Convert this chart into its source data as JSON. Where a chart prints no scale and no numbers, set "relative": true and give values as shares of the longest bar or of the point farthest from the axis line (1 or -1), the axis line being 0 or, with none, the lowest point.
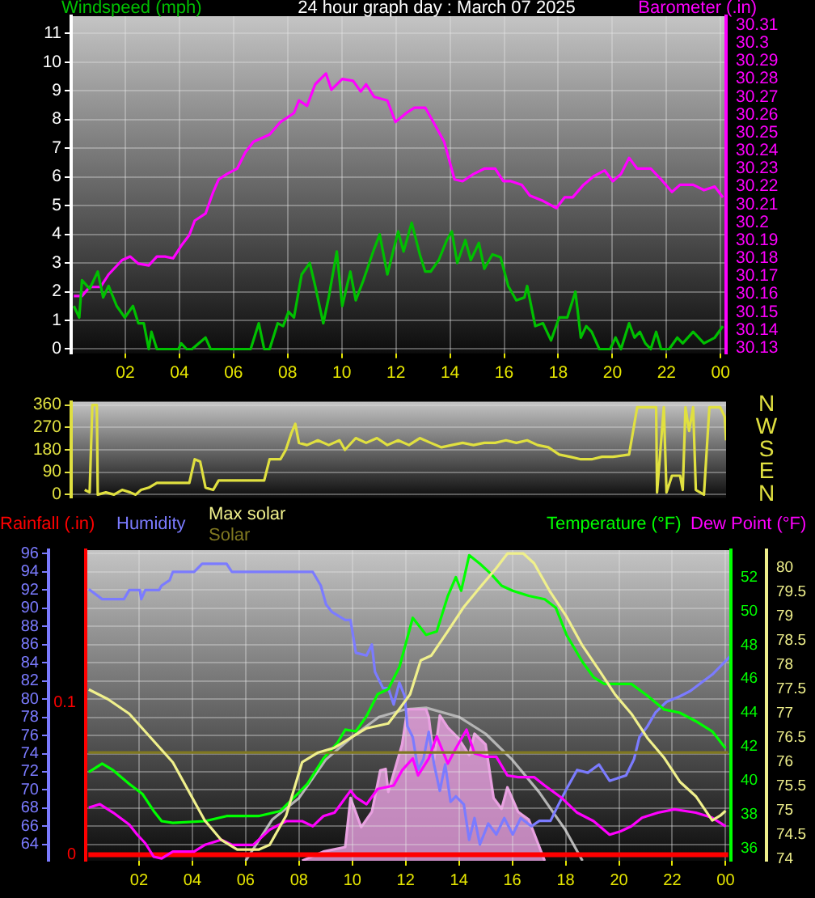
{
  "chart_data": [
    {
      "type": "line",
      "title": "24 hour graph day : March 07 2025",
      "ylabel": "Windspeed (mph)",
      "y2label": "Barometer (.in)",
      "xlim": [
        "2025-03-07T00:00",
        "2025-03-08T00:12"
      ],
      "xticks": [
        {
          "value": "2025-03-07T02:00",
          "label": "02"
        },
        {
          "value": "2025-03-07T04:00",
          "label": "04"
        },
        {
          "value": "2025-03-07T06:00",
          "label": "06"
        },
        {
          "value": "2025-03-07T08:00",
          "label": "08"
        },
        {
          "value": "2025-03-07T10:00",
          "label": "10"
        },
        {
          "value": "2025-03-07T12:00",
          "label": "12"
        },
        {
          "value": "2025-03-07T14:00",
          "label": "14"
        },
        {
          "value": "2025-03-07T16:00",
          "label": "16"
        },
        {
          "value": "2025-03-07T18:00",
          "label": "18"
        },
        {
          "value": "2025-03-07T20:00",
          "label": "20"
        },
        {
          "value": "2025-03-07T22:00",
          "label": "22"
        },
        {
          "value": "2025-03-08T00:00",
          "label": "00"
        }
      ],
      "ylim": [
        -0.15,
        11.6
      ],
      "yticks": [
        0,
        1,
        2,
        3,
        4,
        5,
        6,
        7,
        8,
        9,
        10,
        11
      ],
      "y2lim": [
        30.127,
        30.315
      ],
      "y2ticks": [
        30.13,
        30.14,
        30.15,
        30.16,
        30.17,
        30.18,
        30.19,
        30.2,
        30.21,
        30.22,
        30.23,
        30.24,
        30.25,
        30.26,
        30.27,
        30.28,
        30.29,
        30.3,
        30.31
      ],
      "grid": true,
      "series": [
        {
          "color": "#00c000",
          "x": [
            "2025-03-07T00:06",
            "2025-03-07T00:18",
            "2025-03-07T00:24",
            "2025-03-07T00:41",
            "2025-03-07T00:59",
            "2025-03-07T01:11",
            "2025-03-07T01:23",
            "2025-03-07T01:41",
            "2025-03-07T01:59",
            "2025-03-07T02:17",
            "2025-03-07T02:29",
            "2025-03-07T02:41",
            "2025-03-07T02:52",
            "2025-03-07T02:58",
            "2025-03-07T03:10",
            "2025-03-07T03:58",
            "2025-03-07T04:04",
            "2025-03-07T04:16",
            "2025-03-07T04:28",
            "2025-03-07T04:58",
            "2025-03-07T05:09",
            "2025-03-07T05:21",
            "2025-03-07T05:33",
            "2025-03-07T06:32",
            "2025-03-07T06:38",
            "2025-03-07T06:56",
            "2025-03-07T07:08",
            "2025-03-07T07:20",
            "2025-03-07T07:38",
            "2025-03-07T07:50",
            "2025-03-07T08:02",
            "2025-03-07T08:14",
            "2025-03-07T08:31",
            "2025-03-07T08:49",
            "2025-03-07T09:01",
            "2025-03-07T09:19",
            "2025-03-07T09:31",
            "2025-03-07T09:49",
            "2025-03-07T10:01",
            "2025-03-07T10:19",
            "2025-03-07T10:31",
            "2025-03-07T10:48",
            "2025-03-07T11:12",
            "2025-03-07T11:24",
            "2025-03-07T11:41",
            "2025-03-07T12:05",
            "2025-03-07T12:17",
            "2025-03-07T12:35",
            "2025-03-07T12:53",
            "2025-03-07T13:05",
            "2025-03-07T13:17",
            "2025-03-07T13:35",
            "2025-03-07T13:53",
            "2025-03-07T14:04",
            "2025-03-07T14:16",
            "2025-03-07T14:34",
            "2025-03-07T14:46",
            "2025-03-07T15:04",
            "2025-03-07T15:16",
            "2025-03-07T15:34",
            "2025-03-07T15:52",
            "2025-03-07T16:09",
            "2025-03-07T16:27",
            "2025-03-07T16:45",
            "2025-03-07T16:51",
            "2025-03-07T17:09",
            "2025-03-07T17:26",
            "2025-03-07T17:44",
            "2025-03-07T18:02",
            "2025-03-07T18:20",
            "2025-03-07T18:38",
            "2025-03-07T18:50",
            "2025-03-07T19:02",
            "2025-03-07T19:14",
            "2025-03-07T19:31",
            "2025-03-07T19:55",
            "2025-03-07T20:07",
            "2025-03-07T20:19",
            "2025-03-07T20:37",
            "2025-03-07T20:49",
            "2025-03-07T21:01",
            "2025-03-07T21:13",
            "2025-03-07T21:25",
            "2025-03-07T21:37",
            "2025-03-07T21:48",
            "2025-03-07T22:06",
            "2025-03-07T22:24",
            "2025-03-07T22:36",
            "2025-03-07T22:59",
            "2025-03-07T23:23",
            "2025-03-07T23:47",
            "2025-03-08T00:05"
          ],
          "values": [
            1.5,
            1.1,
            2.4,
            2.1,
            2.7,
            1.8,
            2.2,
            1.5,
            1.1,
            1.5,
            0.9,
            0.9,
            0,
            0.6,
            0,
            0,
            0.2,
            0,
            0,
            0.4,
            0,
            0,
            0,
            0,
            0,
            0.9,
            0,
            0,
            0.9,
            0.8,
            1.3,
            1.1,
            2.6,
            3.0,
            2.2,
            0.9,
            1.8,
            3.4,
            1.5,
            2.7,
            1.7,
            2.4,
            3.5,
            4.0,
            2.6,
            4.1,
            3.4,
            4.4,
            3.3,
            2.7,
            2.7,
            3.1,
            3.8,
            4.1,
            3.0,
            3.8,
            3.1,
            3.7,
            2.8,
            3.3,
            3.2,
            2.2,
            1.7,
            1.8,
            2.2,
            0.8,
            0.9,
            0.3,
            1.1,
            1.1,
            2.0,
            0.4,
            0.8,
            0.6,
            0,
            0,
            0.4,
            0,
            0.9,
            0.4,
            0.6,
            0.2,
            0,
            0.6,
            0,
            0,
            0.4,
            0.2,
            0.6,
            0.2,
            0.4,
            0.8
          ]
        },
        {
          "color": "#ff00ff",
          "axis": "y2",
          "x": [
            "2025-03-07T00:06",
            "2025-03-07T00:24",
            "2025-03-07T00:41",
            "2025-03-07T01:05",
            "2025-03-07T01:23",
            "2025-03-07T01:53",
            "2025-03-07T02:11",
            "2025-03-07T02:29",
            "2025-03-07T02:52",
            "2025-03-07T03:10",
            "2025-03-07T03:28",
            "2025-03-07T03:46",
            "2025-03-07T04:04",
            "2025-03-07T04:22",
            "2025-03-07T04:34",
            "2025-03-07T04:58",
            "2025-03-07T05:15",
            "2025-03-07T05:27",
            "2025-03-07T05:45",
            "2025-03-07T06:08",
            "2025-03-07T06:26",
            "2025-03-07T06:44",
            "2025-03-07T07:20",
            "2025-03-07T07:44",
            "2025-03-07T08:14",
            "2025-03-07T08:25",
            "2025-03-07T08:43",
            "2025-03-07T09:01",
            "2025-03-07T09:25",
            "2025-03-07T09:37",
            "2025-03-07T10:01",
            "2025-03-07T10:25",
            "2025-03-07T10:42",
            "2025-03-07T10:54",
            "2025-03-07T11:12",
            "2025-03-07T11:41",
            "2025-03-07T11:59",
            "2025-03-07T12:23",
            "2025-03-07T12:41",
            "2025-03-07T13:05",
            "2025-03-07T13:23",
            "2025-03-07T13:47",
            "2025-03-07T14:10",
            "2025-03-07T14:28",
            "2025-03-07T14:52",
            "2025-03-07T15:16",
            "2025-03-07T15:40",
            "2025-03-07T15:58",
            "2025-03-07T16:15",
            "2025-03-07T16:39",
            "2025-03-07T16:57",
            "2025-03-07T17:26",
            "2025-03-07T17:56",
            "2025-03-07T18:14",
            "2025-03-07T18:32",
            "2025-03-07T18:56",
            "2025-03-07T19:20",
            "2025-03-07T19:43",
            "2025-03-07T20:01",
            "2025-03-07T20:19",
            "2025-03-07T20:37",
            "2025-03-07T20:55",
            "2025-03-07T21:25",
            "2025-03-07T21:48",
            "2025-03-07T22:12",
            "2025-03-07T22:30",
            "2025-03-07T22:59",
            "2025-03-07T23:23",
            "2025-03-07T23:47",
            "2025-03-08T00:05"
          ],
          "values": [
            30.159,
            30.159,
            30.164,
            30.164,
            30.171,
            30.179,
            30.181,
            30.177,
            30.176,
            30.181,
            30.181,
            30.18,
            30.187,
            30.193,
            30.201,
            30.205,
            30.217,
            30.224,
            30.227,
            30.23,
            30.239,
            30.245,
            30.249,
            30.256,
            30.261,
            30.268,
            30.265,
            30.277,
            30.283,
            30.274,
            30.28,
            30.279,
            30.273,
            30.277,
            30.27,
            30.268,
            30.256,
            30.261,
            30.264,
            30.264,
            30.256,
            30.245,
            30.224,
            30.223,
            30.227,
            30.23,
            30.23,
            30.223,
            30.223,
            30.221,
            30.215,
            30.212,
            30.208,
            30.214,
            30.214,
            30.221,
            30.226,
            30.229,
            30.223,
            30.227,
            30.236,
            30.23,
            30.23,
            30.224,
            30.217,
            30.221,
            30.221,
            30.218,
            30.22,
            30.214
          ]
        }
      ]
    },
    {
      "type": "line",
      "xlim": [
        "2025-03-07T00:00",
        "2025-03-08T00:12"
      ],
      "ylim": [
        -13,
        373
      ],
      "yticks": [
        0,
        90,
        180,
        270,
        360
      ],
      "grid": "y",
      "tick_labels": "y",
      "annotations": [
        "N",
        "W",
        "S",
        "E",
        "N"
      ],
      "series": [
        {
          "color": "#e0e040",
          "x": [
            "2025-03-07T00:30",
            "2025-03-07T00:41",
            "2025-03-07T00:47",
            "2025-03-07T00:57",
            "2025-03-07T00:59",
            "2025-03-07T01:17",
            "2025-03-07T01:35",
            "2025-03-07T01:53",
            "2025-03-07T02:11",
            "2025-03-07T02:23",
            "2025-03-07T02:35",
            "2025-03-07T02:52",
            "2025-03-07T03:10",
            "2025-03-07T03:34",
            "2025-03-07T04:22",
            "2025-03-07T04:28",
            "2025-03-07T04:34",
            "2025-03-07T04:46",
            "2025-03-07T04:58",
            "2025-03-07T05:15",
            "2025-03-07T05:27",
            "2025-03-07T07:08",
            "2025-03-07T07:20",
            "2025-03-07T07:44",
            "2025-03-07T07:56",
            "2025-03-07T08:08",
            "2025-03-07T08:17",
            "2025-03-07T08:25",
            "2025-03-07T08:43",
            "2025-03-07T09:07",
            "2025-03-07T09:31",
            "2025-03-07T09:55",
            "2025-03-07T10:07",
            "2025-03-07T10:31",
            "2025-03-07T10:54",
            "2025-03-07T11:18",
            "2025-03-07T11:41",
            "2025-03-07T12:05",
            "2025-03-07T12:29",
            "2025-03-07T12:53",
            "2025-03-07T13:17",
            "2025-03-07T13:41",
            "2025-03-07T14:04",
            "2025-03-07T14:28",
            "2025-03-07T14:52",
            "2025-03-07T15:16",
            "2025-03-07T15:40",
            "2025-03-07T16:04",
            "2025-03-07T16:27",
            "2025-03-07T16:51",
            "2025-03-07T17:14",
            "2025-03-07T17:38",
            "2025-03-07T18:02",
            "2025-03-07T18:26",
            "2025-03-07T18:50",
            "2025-03-07T19:14",
            "2025-03-07T19:37",
            "2025-03-07T20:01",
            "2025-03-07T20:37",
            "2025-03-07T20:55",
            "2025-03-07T21:37",
            "2025-03-07T21:39",
            "2025-03-07T21:54",
            "2025-03-07T22:00",
            "2025-03-07T22:12",
            "2025-03-07T22:30",
            "2025-03-07T22:36",
            "2025-03-07T22:42",
            "2025-03-07T22:50",
            "2025-03-07T22:59",
            "2025-03-07T23:05",
            "2025-03-07T23:23",
            "2025-03-07T23:35",
            "2025-03-07T23:59",
            "2025-03-08T00:09",
            "2025-03-08T00:12"
          ],
          "values": [
            19,
            9,
            360,
            360,
            0,
            9,
            0,
            19,
            9,
            0,
            19,
            28,
            47,
            47,
            47,
            95,
            142,
            133,
            28,
            19,
            57,
            57,
            142,
            142,
            180,
            246,
            284,
            208,
            199,
            218,
            199,
            218,
            180,
            227,
            208,
            227,
            199,
            218,
            199,
            227,
            208,
            190,
            199,
            208,
            199,
            208,
            208,
            218,
            208,
            218,
            199,
            190,
            161,
            152,
            142,
            142,
            152,
            152,
            161,
            351,
            351,
            9,
            351,
            9,
            76,
            76,
            19,
            351,
            256,
            351,
            19,
            0,
            351,
            351,
            313,
            218
          ]
        }
      ]
    },
    {
      "type": "line",
      "relative": true,
      "xlim": [
        "2025-03-07T00:00",
        "2025-03-08T00:12"
      ],
      "tick_labels": false,
      "series": [
        {
          "type": "area",
          "color": "#e8a0e0",
          "x": [
            "2025-03-07T08:07",
            "2025-03-07T08:55",
            "2025-03-07T09:44",
            "2025-03-07T09:56",
            "2025-03-07T10:20",
            "2025-03-07T10:44",
            "2025-03-07T11:03",
            "2025-03-07T11:15",
            "2025-03-07T11:21",
            "2025-03-07T11:52",
            "2025-03-07T12:04",
            "2025-03-07T12:46",
            "2025-03-07T12:52",
            "2025-03-07T13:04",
            "2025-03-07T13:17",
            "2025-03-07T13:35",
            "2025-03-07T13:59",
            "2025-03-07T14:23",
            "2025-03-07T14:35",
            "2025-03-07T15:00",
            "2025-03-07T15:18",
            "2025-03-07T15:36",
            "2025-03-07T15:49",
            "2025-03-07T16:13",
            "2025-03-07T16:37",
            "2025-03-07T17:01",
            "2025-03-07T17:13"
          ],
          "values": [
            0,
            0.06,
            0.09,
            0.41,
            0.22,
            0.32,
            0.59,
            0.6,
            0.45,
            0.76,
            0.99,
            0.99,
            0.94,
            0.66,
            0.95,
            0.87,
            0.8,
            0.69,
            0.83,
            0.76,
            0.41,
            0.34,
            0.48,
            0.32,
            0.27,
            0.09,
            0
          ]
        },
        {
          "color": "#b4b4b4",
          "x": [
            "2025-03-07T06:00",
            "2025-03-07T07:00",
            "2025-03-07T08:00",
            "2025-03-07T09:00",
            "2025-03-07T10:00",
            "2025-03-07T11:00",
            "2025-03-07T12:00",
            "2025-03-07T12:46",
            "2025-03-07T14:00",
            "2025-03-07T15:00",
            "2025-03-07T16:00",
            "2025-03-07T17:00",
            "2025-03-07T18:00",
            "2025-03-07T18:38"
          ],
          "values": [
            0,
            0.27,
            0.41,
            0.66,
            0.81,
            0.94,
            0.99,
            1,
            0.94,
            0.83,
            0.66,
            0.45,
            0.2,
            0
          ]
        }
      ]
    },
    {
      "type": "line",
      "legend": "top",
      "xlim": [
        "2025-03-07T00:00",
        "2025-03-08T00:12"
      ],
      "xticks": [
        {
          "value": "2025-03-07T02:00",
          "label": "02"
        },
        {
          "value": "2025-03-07T04:00",
          "label": "04"
        },
        {
          "value": "2025-03-07T06:00",
          "label": "06"
        },
        {
          "value": "2025-03-07T08:00",
          "label": "08"
        },
        {
          "value": "2025-03-07T10:00",
          "label": "10"
        },
        {
          "value": "2025-03-07T12:00",
          "label": "12"
        },
        {
          "value": "2025-03-07T14:00",
          "label": "14"
        },
        {
          "value": "2025-03-07T16:00",
          "label": "16"
        },
        {
          "value": "2025-03-07T18:00",
          "label": "18"
        },
        {
          "value": "2025-03-07T20:00",
          "label": "20"
        },
        {
          "value": "2025-03-07T22:00",
          "label": "22"
        },
        {
          "value": "2025-03-08T00:00",
          "label": "00"
        }
      ],
      "ylim": [
        62.2,
        96.4
      ],
      "yticks": [
        64,
        66,
        68,
        70,
        72,
        74,
        76,
        78,
        80,
        82,
        84,
        86,
        88,
        90,
        92,
        94,
        96
      ],
      "y2lim": [
        -0.004,
        0.2
      ],
      "y2ticks": [
        0,
        0.1
      ],
      "grid": true,
      "series": [
        {
          "name": "Rainfall (.in)",
          "color": "#ff0000",
          "axis": "y2",
          "x": [
            "2025-03-07T00:06",
            "2025-03-08T00:06"
          ],
          "values": [
            0,
            0
          ]
        },
        {
          "name": "Humidity",
          "color": "#7b7bff",
          "x": [
            "2025-03-07T00:07",
            "2025-03-07T00:37",
            "2025-03-07T01:26",
            "2025-03-07T01:38",
            "2025-03-07T02:02",
            "2025-03-07T02:05",
            "2025-03-07T02:14",
            "2025-03-07T02:45",
            "2025-03-07T02:51",
            "2025-03-07T03:09",
            "2025-03-07T03:16",
            "2025-03-07T04:04",
            "2025-03-07T04:22",
            "2025-03-07T05:17",
            "2025-03-07T05:29",
            "2025-03-07T08:31",
            "2025-03-07T08:49",
            "2025-03-07T09:01",
            "2025-03-07T09:14",
            "2025-03-07T09:44",
            "2025-03-07T09:56",
            "2025-03-07T10:08",
            "2025-03-07T10:32",
            "2025-03-07T10:44",
            "2025-03-07T10:51",
            "2025-03-07T11:09",
            "2025-03-07T11:21",
            "2025-03-07T11:33",
            "2025-03-07T11:46",
            "2025-03-07T11:58",
            "2025-03-07T12:04",
            "2025-03-07T12:16",
            "2025-03-07T12:28",
            "2025-03-07T12:40",
            "2025-03-07T12:52",
            "2025-03-07T13:04",
            "2025-03-07T13:17",
            "2025-03-07T13:29",
            "2025-03-07T13:41",
            "2025-03-07T13:53",
            "2025-03-07T14:11",
            "2025-03-07T14:23",
            "2025-03-07T14:35",
            "2025-03-07T14:47",
            "2025-03-07T15:06",
            "2025-03-07T15:24",
            "2025-03-07T15:42",
            "2025-03-07T16:01",
            "2025-03-07T16:19",
            "2025-03-07T16:43",
            "2025-03-07T17:01",
            "2025-03-07T17:26",
            "2025-03-07T17:38",
            "2025-03-07T18:02",
            "2025-03-07T18:26",
            "2025-03-07T18:50",
            "2025-03-07T19:15",
            "2025-03-07T19:39",
            "2025-03-07T20:16",
            "2025-03-07T20:34",
            "2025-03-07T20:46",
            "2025-03-07T21:04",
            "2025-03-07T21:22",
            "2025-03-07T21:47",
            "2025-03-07T22:17",
            "2025-03-07T22:41",
            "2025-03-07T23:05",
            "2025-03-07T23:30",
            "2025-03-07T23:54",
            "2025-03-08T00:12"
          ],
          "values": [
            92.1,
            91.0,
            91.0,
            92.0,
            92.0,
            91.0,
            92.0,
            92.0,
            92.5,
            93.1,
            94.0,
            94.0,
            94.9,
            94.9,
            94.0,
            94.0,
            92.5,
            90.4,
            89.6,
            88.7,
            88.7,
            85.1,
            84.8,
            86.0,
            83.0,
            81.2,
            81.2,
            79.4,
            81.8,
            80.3,
            77.0,
            75.8,
            72.2,
            73.4,
            76.4,
            72.8,
            69.9,
            72.8,
            68.7,
            69.3,
            68.4,
            64.5,
            66.9,
            64.0,
            66.3,
            65.1,
            66.9,
            65.1,
            66.9,
            66.0,
            66.6,
            66.6,
            67.8,
            70.1,
            72.2,
            71.9,
            72.8,
            71.0,
            71.6,
            73.4,
            75.8,
            77.0,
            78.5,
            79.7,
            80.3,
            80.9,
            81.8,
            82.7,
            83.9,
            84.8
          ]
        }
      ]
    },
    {
      "type": "line",
      "legend": "top",
      "xlim": [
        "2025-03-07T00:00",
        "2025-03-08T00:12"
      ],
      "tick_labels": "y",
      "ylim": [
        35.26,
        53.6
      ],
      "yticks": [
        36,
        38,
        40,
        42,
        44,
        46,
        48,
        50,
        52
      ],
      "y2lim": [
        73.97,
        80.37
      ],
      "y2ticks": [
        74,
        74.5,
        75,
        75.5,
        76,
        76.5,
        77,
        77.5,
        78,
        78.5,
        79,
        79.5,
        80
      ],
      "series": [
        {
          "name": "Max solar",
          "color": "#f0f08c",
          "axis": "y2",
          "x": [
            "2025-03-07T00:07",
            "2025-03-07T00:50",
            "2025-03-07T01:38",
            "2025-03-07T02:27",
            "2025-03-07T03:16",
            "2025-03-07T03:52",
            "2025-03-07T04:28",
            "2025-03-07T05:05",
            "2025-03-07T05:41",
            "2025-03-07T06:29",
            "2025-03-07T06:54",
            "2025-03-07T07:31",
            "2025-03-07T08:07",
            "2025-03-07T08:43",
            "2025-03-07T09:20",
            "2025-03-07T09:56",
            "2025-03-07T10:32",
            "2025-03-07T11:21",
            "2025-03-07T11:46",
            "2025-03-07T12:10",
            "2025-03-07T12:34",
            "2025-03-07T12:58",
            "2025-03-07T13:35",
            "2025-03-07T14:11",
            "2025-03-07T14:47",
            "2025-03-07T15:24",
            "2025-03-07T15:49",
            "2025-03-07T16:25",
            "2025-03-07T16:49",
            "2025-03-07T17:26",
            "2025-03-07T18:02",
            "2025-03-07T18:38",
            "2025-03-07T19:15",
            "2025-03-07T19:51",
            "2025-03-07T20:28",
            "2025-03-07T21:04",
            "2025-03-07T21:41",
            "2025-03-07T22:17",
            "2025-03-07T22:53",
            "2025-03-07T23:30",
            "2025-03-07T23:48",
            "2025-03-08T00:00"
          ],
          "values": [
            77.5,
            77.3,
            77.0,
            76.5,
            76.0,
            75.4,
            74.8,
            74.4,
            74.2,
            74.2,
            74.3,
            74.9,
            76.0,
            76.2,
            76.3,
            76.5,
            76.7,
            76.8,
            77.1,
            77.4,
            78.1,
            78.2,
            78.7,
            79.2,
            79.6,
            80.0,
            80.3,
            80.3,
            80.1,
            79.5,
            79.0,
            78.4,
            77.9,
            77.4,
            77.0,
            76.5,
            76.1,
            75.6,
            75.3,
            74.8,
            74.9,
            75.0
          ]
        },
        {
          "name": "Solar",
          "color": "#807820",
          "axis": "y2",
          "x": [
            "2025-03-07T00:06",
            "2025-03-08T00:06"
          ],
          "values": [
            76.2,
            76.2
          ]
        },
        {
          "name": "Temperature (°F)",
          "color": "#00ff00",
          "x": [
            "2025-03-07T00:07",
            "2025-03-07T00:37",
            "2025-03-07T01:02",
            "2025-03-07T01:38",
            "2025-03-07T02:08",
            "2025-03-07T02:33",
            "2025-03-07T02:51",
            "2025-03-07T03:16",
            "2025-03-07T04:28",
            "2025-03-07T05:17",
            "2025-03-07T06:29",
            "2025-03-07T07:18",
            "2025-03-07T07:49",
            "2025-03-07T08:19",
            "2025-03-07T08:55",
            "2025-03-07T09:26",
            "2025-03-07T09:44",
            "2025-03-07T10:08",
            "2025-03-07T10:32",
            "2025-03-07T10:57",
            "2025-03-07T11:21",
            "2025-03-07T11:46",
            "2025-03-07T12:16",
            "2025-03-07T12:34",
            "2025-03-07T12:46",
            "2025-03-07T13:10",
            "2025-03-07T13:35",
            "2025-03-07T13:53",
            "2025-03-07T14:05",
            "2025-03-07T14:23",
            "2025-03-07T14:47",
            "2025-03-07T15:12",
            "2025-03-07T15:36",
            "2025-03-07T16:01",
            "2025-03-07T16:37",
            "2025-03-07T17:13",
            "2025-03-07T17:38",
            "2025-03-07T18:02",
            "2025-03-07T18:38",
            "2025-03-07T19:03",
            "2025-03-07T19:27",
            "2025-03-07T20:28",
            "2025-03-07T21:04",
            "2025-03-07T21:41",
            "2025-03-07T22:17",
            "2025-03-07T22:53",
            "2025-03-07T23:30",
            "2025-03-08T00:00"
          ],
          "values": [
            40.5,
            41.0,
            40.6,
            39.8,
            39.2,
            38.2,
            37.6,
            37.5,
            37.6,
            37.9,
            37.9,
            38.2,
            39.0,
            39.8,
            41.3,
            42.2,
            43.0,
            42.9,
            43.8,
            45.1,
            45.4,
            46.7,
            49.6,
            49.0,
            48.6,
            48.8,
            50.9,
            52.0,
            51.2,
            53.3,
            52.8,
            52.2,
            51.5,
            51.2,
            50.9,
            50.7,
            50.2,
            48.6,
            47.0,
            46.1,
            45.7,
            45.7,
            45.0,
            44.2,
            44.0,
            43.5,
            42.9,
            41.9
          ]
        },
        {
          "name": "Dew Point (°F)",
          "color": "#ff00ff",
          "x": [
            "2025-03-07T00:07",
            "2025-03-07T00:32",
            "2025-03-07T01:02",
            "2025-03-07T01:38",
            "2025-03-07T01:56",
            "2025-03-07T02:14",
            "2025-03-07T02:33",
            "2025-03-07T02:51",
            "2025-03-07T03:16",
            "2025-03-07T04:04",
            "2025-03-07T04:28",
            "2025-03-07T05:05",
            "2025-03-07T05:29",
            "2025-03-07T06:17",
            "2025-03-07T06:54",
            "2025-03-07T07:31",
            "2025-03-07T08:07",
            "2025-03-07T08:31",
            "2025-03-07T08:55",
            "2025-03-07T09:20",
            "2025-03-07T09:56",
            "2025-03-07T10:08",
            "2025-03-07T10:32",
            "2025-03-07T10:57",
            "2025-03-07T11:33",
            "2025-03-07T11:52",
            "2025-03-07T12:16",
            "2025-03-07T12:28",
            "2025-03-07T12:52",
            "2025-03-07T13:10",
            "2025-03-07T13:35",
            "2025-03-07T13:53",
            "2025-03-07T14:17",
            "2025-03-07T14:35",
            "2025-03-07T15:00",
            "2025-03-07T15:24",
            "2025-03-07T15:49",
            "2025-03-07T16:13",
            "2025-03-07T16:49",
            "2025-03-07T17:13",
            "2025-03-07T17:50",
            "2025-03-07T18:26",
            "2025-03-07T19:03",
            "2025-03-07T19:39",
            "2025-03-07T20:04",
            "2025-03-07T20:28",
            "2025-03-07T20:52",
            "2025-03-07T21:28",
            "2025-03-07T22:05",
            "2025-03-07T22:53",
            "2025-03-07T23:30",
            "2025-03-08T00:00"
          ],
          "values": [
            38.4,
            38.6,
            38.1,
            37.4,
            36.8,
            36.3,
            35.5,
            35.4,
            35.8,
            35.8,
            36.2,
            36.5,
            36.2,
            36.2,
            37.1,
            37.6,
            37.6,
            37.3,
            37.9,
            38.1,
            39.4,
            39.0,
            38.6,
            39.5,
            39.7,
            40.6,
            41.3,
            40.3,
            41.3,
            42.6,
            41.0,
            41.9,
            43.0,
            41.6,
            41.4,
            41.4,
            40.3,
            40.2,
            40.2,
            39.7,
            39.0,
            38.1,
            37.6,
            36.8,
            37.0,
            37.3,
            37.8,
            38.1,
            38.3,
            38.1,
            37.8,
            37.3
          ]
        }
      ]
    }
  ]
}
